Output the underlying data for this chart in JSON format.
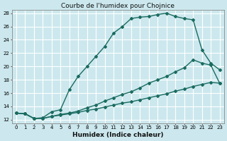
{
  "title": "Courbe de l'humidex pour Chojnice",
  "xlabel": "Humidex (Indice chaleur)",
  "bg_color": "#cce8ee",
  "grid_color": "#ffffff",
  "line_color": "#1a6b60",
  "marker": "D",
  "markersize": 2.0,
  "linewidth": 1.0,
  "xlim": [
    -0.5,
    23.5
  ],
  "ylim": [
    11.5,
    28.5
  ],
  "xticks": [
    0,
    1,
    2,
    3,
    4,
    5,
    6,
    7,
    8,
    9,
    10,
    11,
    12,
    13,
    14,
    15,
    16,
    17,
    18,
    19,
    20,
    21,
    22,
    23
  ],
  "yticks": [
    12,
    14,
    16,
    18,
    20,
    22,
    24,
    26,
    28
  ],
  "line1_x": [
    0,
    1,
    2,
    3,
    4,
    5,
    6,
    7,
    8,
    9,
    10,
    11,
    12,
    13,
    14,
    15,
    16,
    17,
    18,
    19,
    20,
    21,
    22,
    23
  ],
  "line1_y": [
    13.0,
    12.9,
    12.2,
    12.3,
    13.2,
    13.5,
    16.5,
    18.5,
    20.0,
    21.5,
    23.0,
    25.0,
    26.0,
    27.2,
    27.4,
    27.5,
    27.8,
    28.0,
    27.5,
    27.2,
    27.0,
    22.5,
    20.5,
    19.5
  ],
  "line2_x": [
    0,
    1,
    2,
    3,
    4,
    5,
    6,
    7,
    8,
    9,
    10,
    11,
    12,
    13,
    14,
    15,
    16,
    17,
    18,
    19,
    20,
    21,
    22,
    23
  ],
  "line2_y": [
    13.0,
    12.9,
    12.2,
    12.2,
    12.5,
    12.8,
    13.0,
    13.3,
    13.8,
    14.2,
    14.8,
    15.3,
    15.8,
    16.2,
    16.8,
    17.5,
    18.0,
    18.5,
    19.2,
    19.8,
    21.0,
    20.5,
    20.2,
    17.5
  ],
  "line3_x": [
    0,
    1,
    2,
    3,
    4,
    5,
    6,
    7,
    8,
    9,
    10,
    11,
    12,
    13,
    14,
    15,
    16,
    17,
    18,
    19,
    20,
    21,
    22,
    23
  ],
  "line3_y": [
    13.0,
    12.9,
    12.2,
    12.2,
    12.5,
    12.7,
    12.9,
    13.1,
    13.4,
    13.6,
    13.9,
    14.2,
    14.5,
    14.7,
    15.0,
    15.3,
    15.6,
    15.9,
    16.3,
    16.6,
    17.0,
    17.3,
    17.6,
    17.5
  ],
  "title_fontsize": 6.5,
  "tick_fontsize": 5.0,
  "xlabel_fontsize": 6.5
}
